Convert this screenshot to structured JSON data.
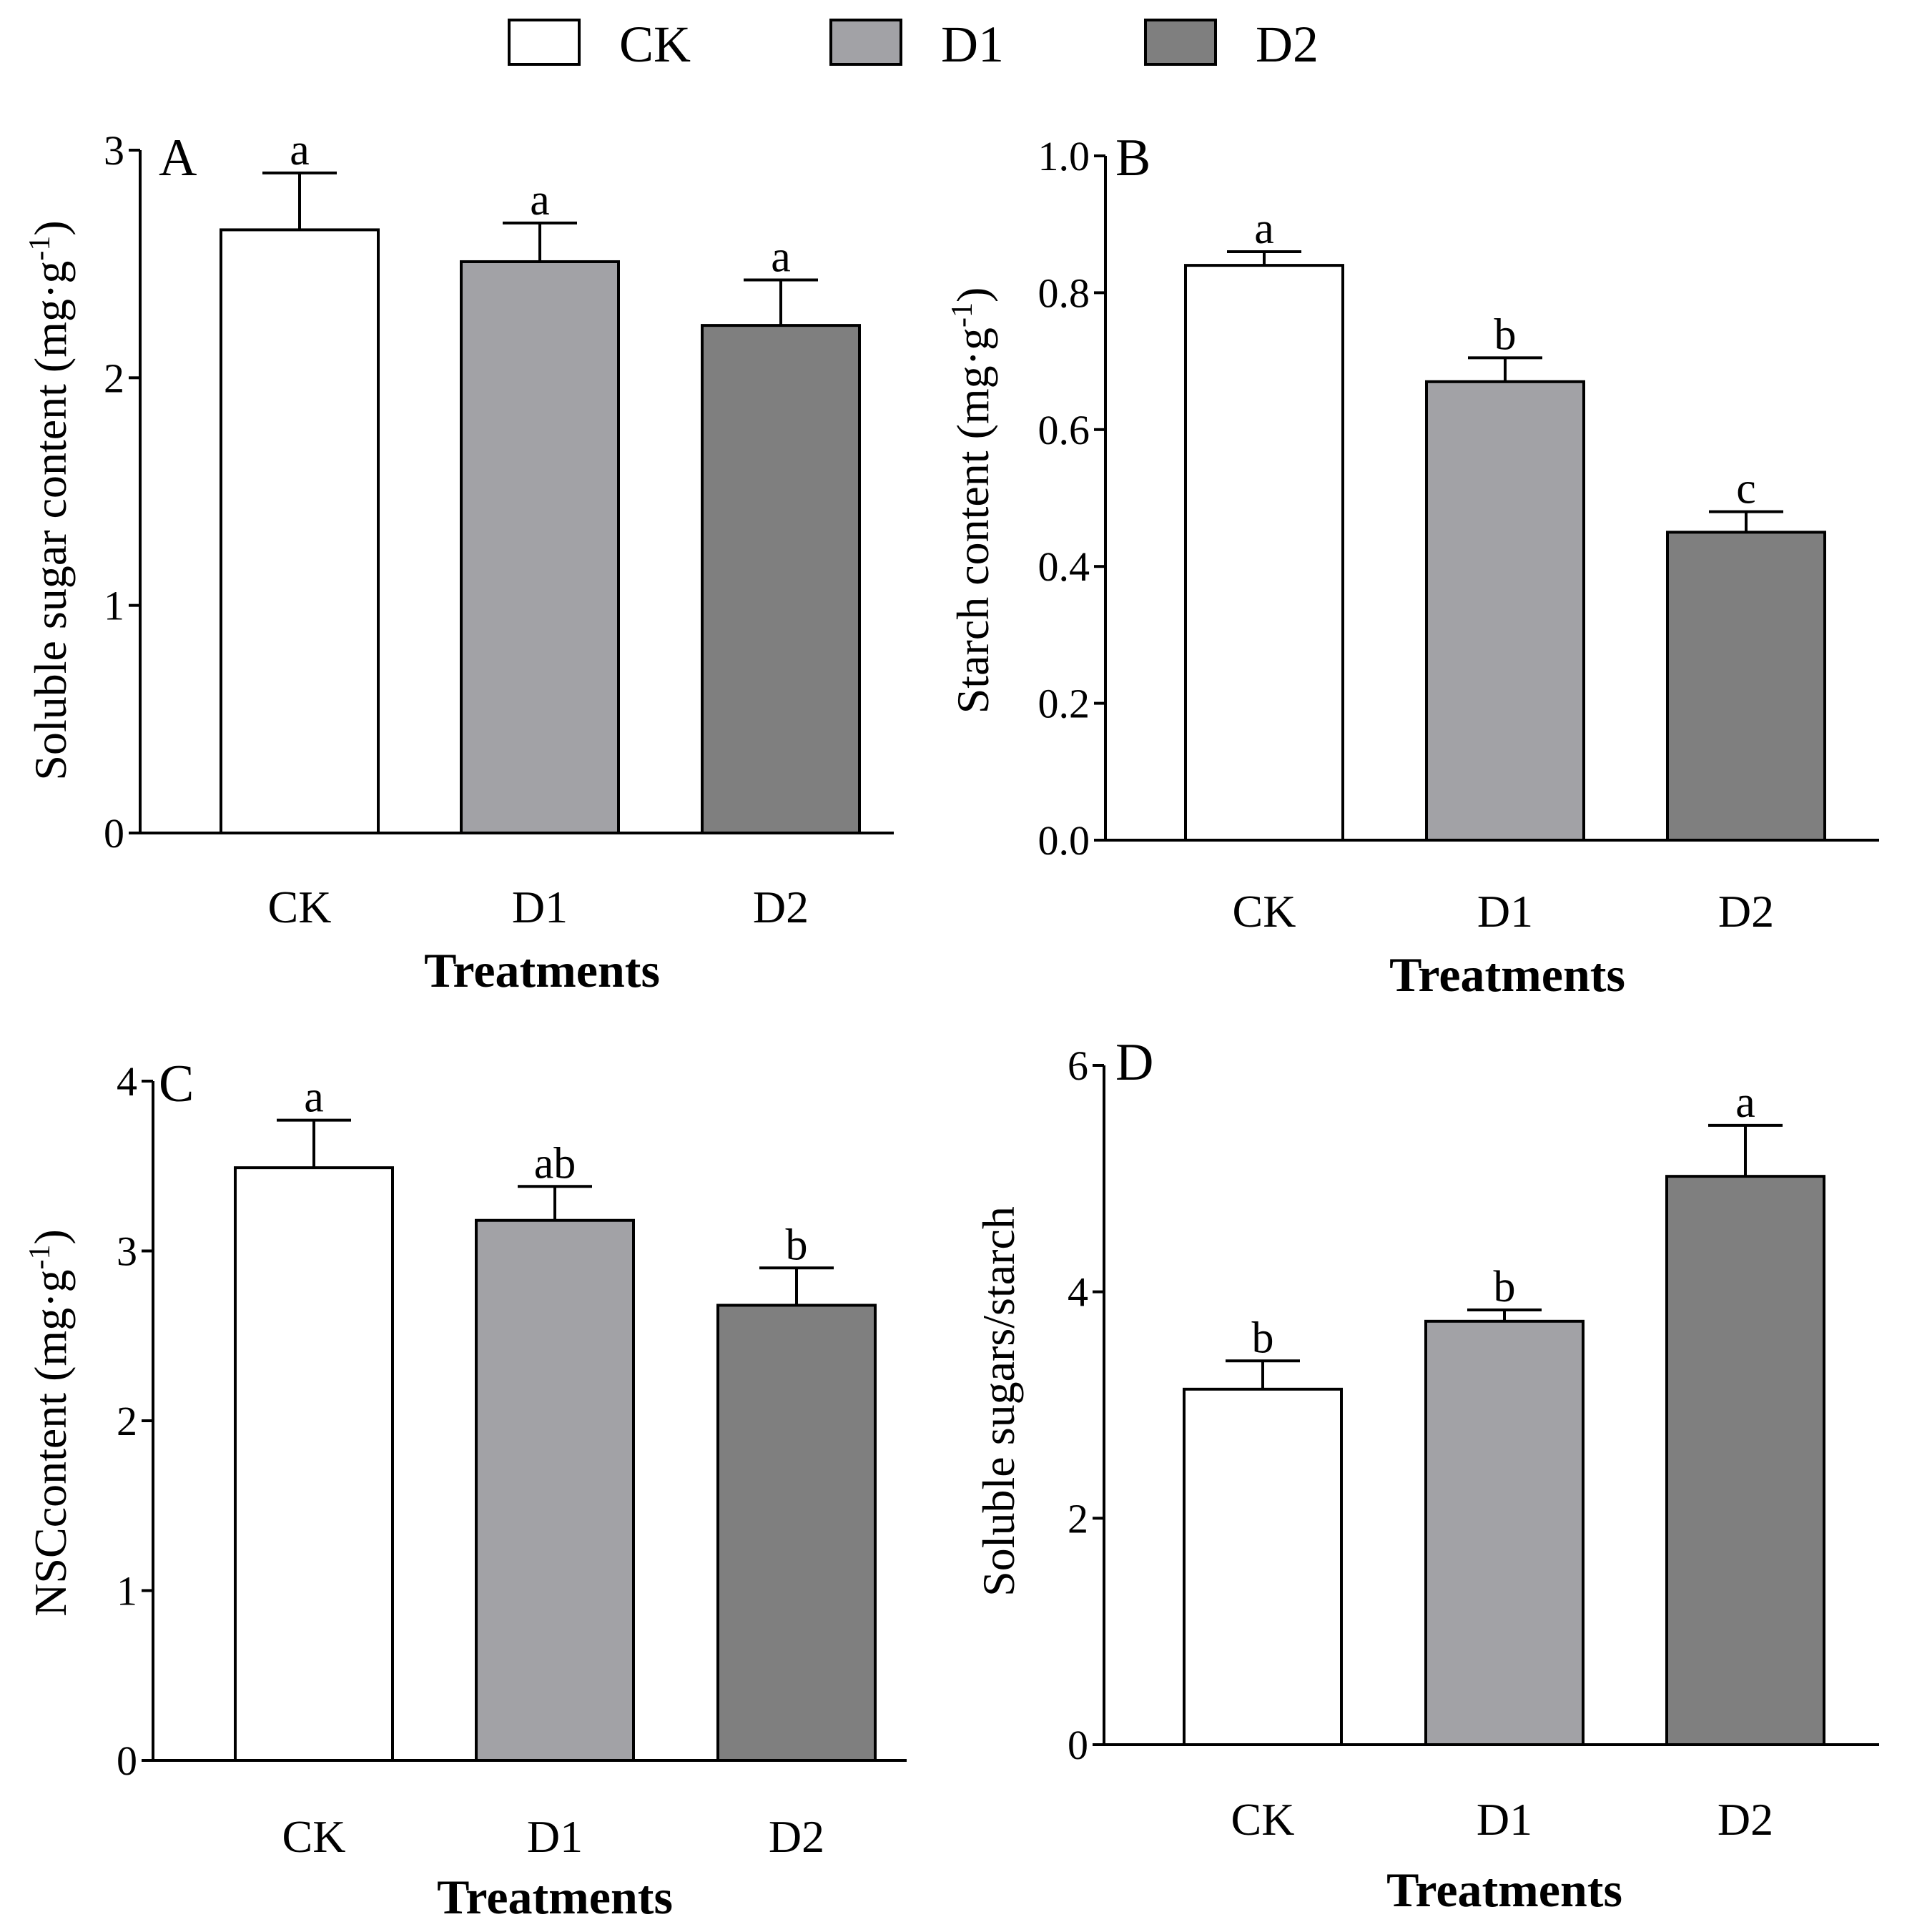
{
  "legend": [
    {
      "label": "CK",
      "color": "#ffffff"
    },
    {
      "label": "D1",
      "color": "#a2a2a6"
    },
    {
      "label": "D2",
      "color": "#7f7f7f"
    }
  ],
  "chart_data": [
    {
      "type": "bar",
      "panel": "A",
      "categories": [
        "CK",
        "D1",
        "D2"
      ],
      "values": [
        2.65,
        2.51,
        2.23
      ],
      "errors": [
        0.25,
        0.17,
        0.2
      ],
      "significance": [
        "a",
        "a",
        "a"
      ],
      "xlabel": "Treatments",
      "ylabel_main": "Soluble sugar content (mg·g",
      "ylabel_sup": "-1",
      "ylabel_close": ")",
      "ylim": [
        0,
        3
      ],
      "yticks": [
        "0",
        "1",
        "2",
        "3"
      ],
      "tick_values": [
        0,
        1,
        2,
        3
      ],
      "colors": [
        "#ffffff",
        "#a2a2a6",
        "#7f7f7f"
      ]
    },
    {
      "type": "bar",
      "panel": "B",
      "categories": [
        "CK",
        "D1",
        "D2"
      ],
      "values": [
        0.84,
        0.67,
        0.45
      ],
      "errors": [
        0.02,
        0.035,
        0.03
      ],
      "significance": [
        "a",
        "b",
        "c"
      ],
      "xlabel": "Treatments",
      "ylabel_main": "Starch content (mg·g",
      "ylabel_sup": "-1",
      "ylabel_close": ")",
      "ylim": [
        0,
        1.0
      ],
      "yticks": [
        "0.0",
        "0.2",
        "0.4",
        "0.6",
        "0.8",
        "1.0"
      ],
      "tick_values": [
        0,
        0.2,
        0.4,
        0.6,
        0.8,
        1.0
      ],
      "colors": [
        "#ffffff",
        "#a2a2a6",
        "#7f7f7f"
      ]
    },
    {
      "type": "bar",
      "panel": "C",
      "categories": [
        "CK",
        "D1",
        "D2"
      ],
      "values": [
        3.49,
        3.18,
        2.68
      ],
      "errors": [
        0.28,
        0.2,
        0.22
      ],
      "significance": [
        "a",
        "ab",
        "b"
      ],
      "xlabel": "Treatments",
      "ylabel_main": "NSCcontent (mg·g",
      "ylabel_sup": "-1",
      "ylabel_close": ")",
      "ylim": [
        0,
        4
      ],
      "yticks": [
        "0",
        "1",
        "2",
        "3",
        "4"
      ],
      "tick_values": [
        0,
        1,
        2,
        3,
        4
      ],
      "colors": [
        "#ffffff",
        "#a2a2a6",
        "#7f7f7f"
      ]
    },
    {
      "type": "bar",
      "panel": "D",
      "categories": [
        "CK",
        "D1",
        "D2"
      ],
      "values": [
        3.14,
        3.74,
        5.02
      ],
      "errors": [
        0.25,
        0.1,
        0.45
      ],
      "significance": [
        "b",
        "b",
        "a"
      ],
      "xlabel": "Treatments",
      "ylabel_main": "Soluble sugars/starch",
      "ylabel_sup": "",
      "ylabel_close": "",
      "ylim": [
        0,
        6
      ],
      "yticks": [
        "0",
        "2",
        "4",
        "6"
      ],
      "tick_values": [
        0,
        2,
        4,
        6
      ],
      "colors": [
        "#ffffff",
        "#a2a2a6",
        "#7f7f7f"
      ]
    }
  ]
}
